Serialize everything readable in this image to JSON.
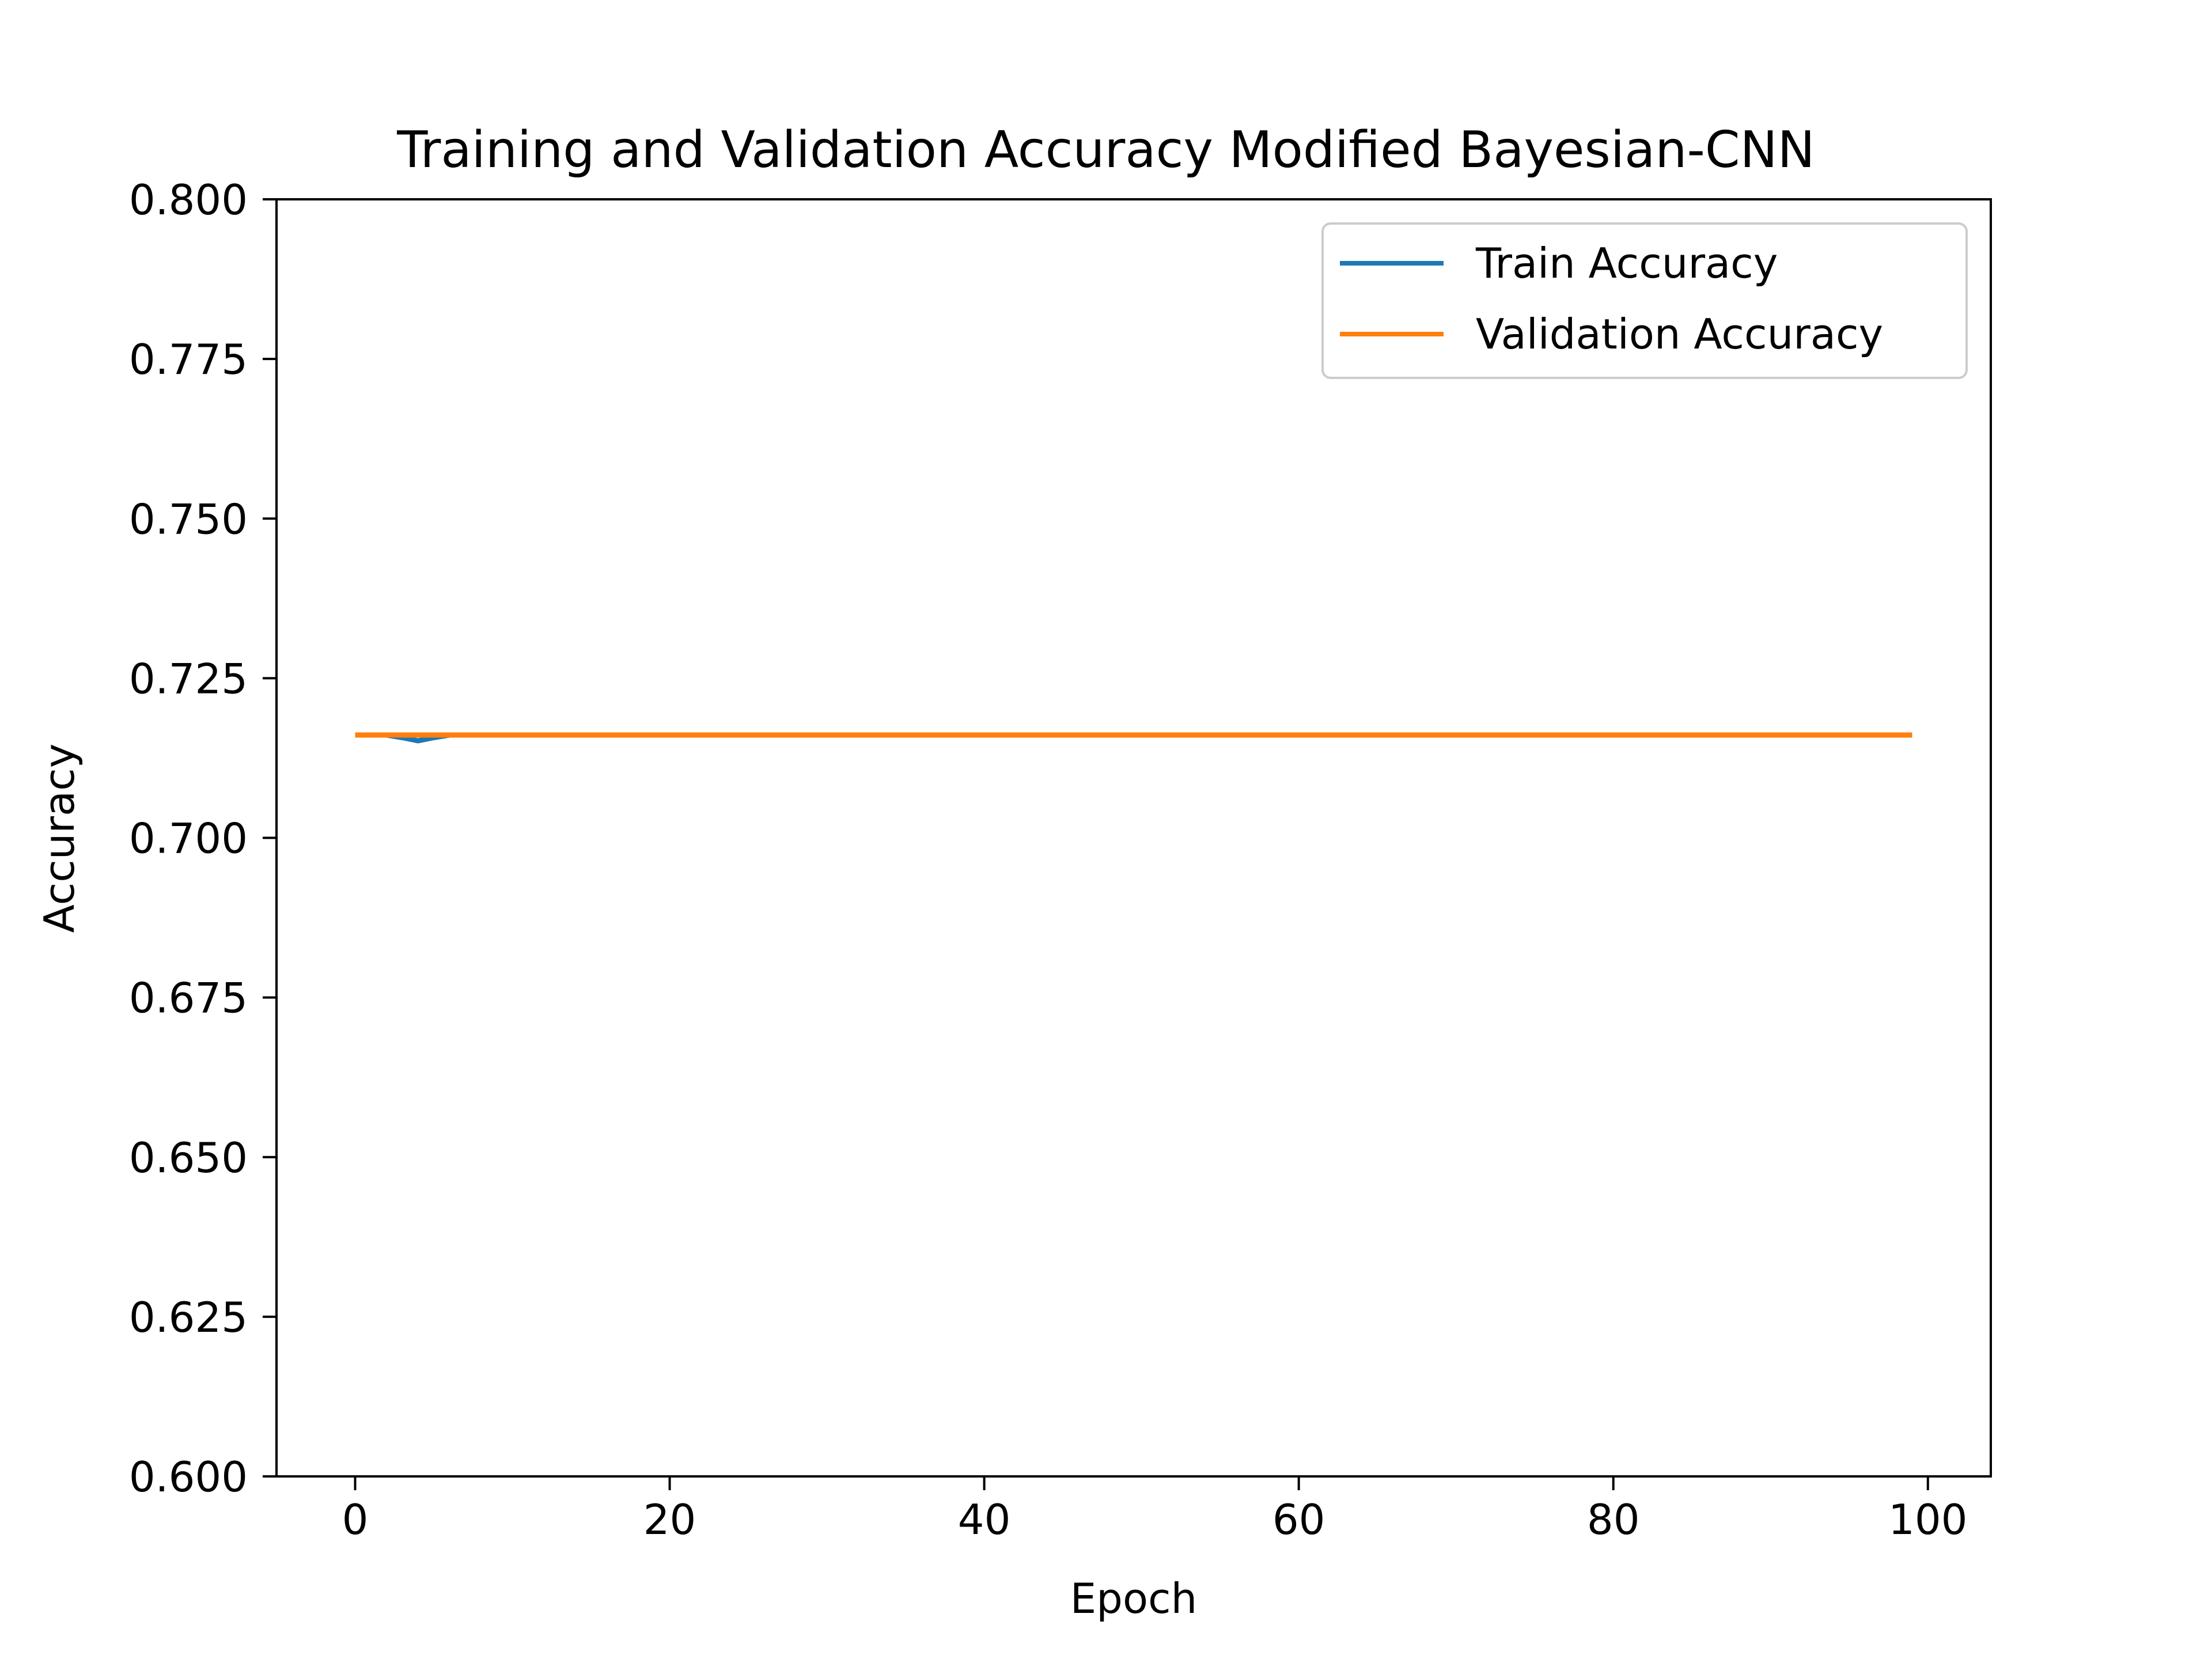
{
  "chart_data": {
    "type": "line",
    "title": "Training and Validation Accuracy Modified Bayesian-CNN",
    "xlabel": "Epoch",
    "ylabel": "Accuracy",
    "xlim": [
      -5,
      104
    ],
    "ylim": [
      0.6,
      0.8
    ],
    "x_ticks": [
      0,
      20,
      40,
      60,
      80,
      100
    ],
    "x_tick_labels": [
      "0",
      "20",
      "40",
      "60",
      "80",
      "100"
    ],
    "y_ticks": [
      0.6,
      0.625,
      0.65,
      0.675,
      0.7,
      0.725,
      0.75,
      0.775,
      0.8
    ],
    "y_tick_labels": [
      "0.600",
      "0.625",
      "0.650",
      "0.675",
      "0.700",
      "0.725",
      "0.750",
      "0.775",
      "0.800"
    ],
    "grid": false,
    "legend_position": "top-right",
    "series": [
      {
        "name": "Train Accuracy",
        "color": "#1f77b4",
        "x": [
          0,
          1,
          2,
          3,
          4,
          5,
          6,
          99
        ],
        "y": [
          0.7161,
          0.7161,
          0.7161,
          0.7157,
          0.7152,
          0.7157,
          0.7161,
          0.7161
        ]
      },
      {
        "name": "Validation Accuracy",
        "color": "#ff7f0e",
        "x": [
          0,
          99
        ],
        "y": [
          0.7161,
          0.7161
        ]
      }
    ]
  }
}
